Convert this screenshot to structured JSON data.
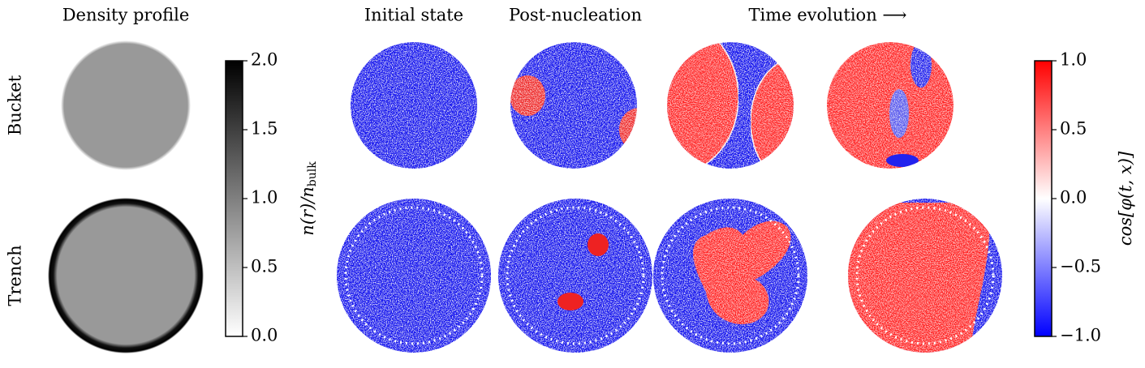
{
  "column_titles": [
    "Density profile",
    "Initial state",
    "Post-nucleation",
    "Time evolution ⟶"
  ],
  "row_labels": [
    "Bucket",
    "Trench"
  ],
  "colorbars": [
    {
      "label": "n(r)/n",
      "label_sub": "bulk",
      "colors": [
        "#ffffff",
        "#000000"
      ],
      "lim": [
        0,
        2
      ],
      "ticks": [
        {
          "value": 0,
          "label": "0.0"
        },
        0.5,
        {
          "value": 1,
          "label": "1.0"
        },
        1.5,
        {
          "value": 2,
          "label": "2.0"
        }
      ]
    },
    {
      "label": "cos[φ(t, x)]",
      "colors": [
        "#0000ff",
        "#ffffff",
        "#ff0000"
      ],
      "lim": [
        -1,
        1
      ],
      "ticks": [
        {
          "value": -1,
          "label": "−1.0"
        },
        {
          "value": -0.5,
          "label": "−0.5"
        },
        {
          "value": 0,
          "label": "0.0"
        },
        0.5,
        {
          "value": 1,
          "label": "1.0"
        }
      ]
    }
  ]
}
